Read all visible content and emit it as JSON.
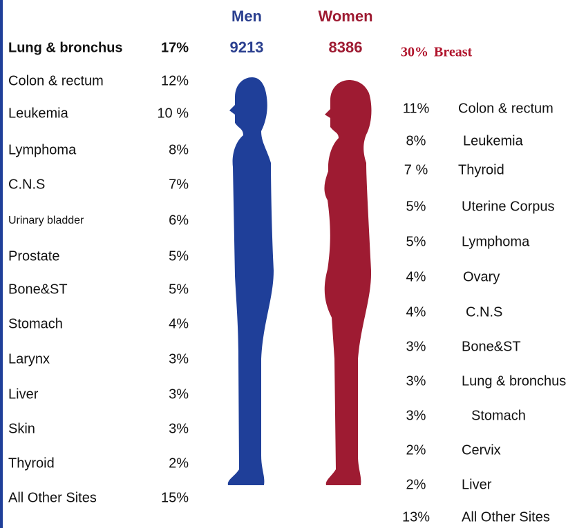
{
  "men": {
    "label": "Men",
    "total": 9213,
    "sites": [
      {
        "percent": "17%",
        "name": "Lung & bronchus"
      },
      {
        "percent": "12%",
        "name": "Colon & rectum"
      },
      {
        "percent": "10 %",
        "name": "Leukemia"
      },
      {
        "percent": "8%",
        "name": "Lymphoma"
      },
      {
        "percent": "7%",
        "name": "C.N.S"
      },
      {
        "percent": "6%",
        "name": "Urinary bladder"
      },
      {
        "percent": "5%",
        "name": "Prostate"
      },
      {
        "percent": "5%",
        "name": "Bone&ST"
      },
      {
        "percent": "4%",
        "name": "Stomach"
      },
      {
        "percent": "3%",
        "name": "Larynx"
      },
      {
        "percent": "3%",
        "name": "Liver"
      },
      {
        "percent": "3%",
        "name": "Skin"
      },
      {
        "percent": "2%",
        "name": "Thyroid"
      },
      {
        "percent": "15%",
        "name": "All Other Sites"
      }
    ]
  },
  "women": {
    "label": "Women",
    "total": 8386,
    "sites": [
      {
        "percent": "30%",
        "name": "Breast"
      },
      {
        "percent": "11%",
        "name": "Colon & rectum"
      },
      {
        "percent": "8%",
        "name": "Leukemia"
      },
      {
        "percent": "7 %",
        "name": "Thyroid"
      },
      {
        "percent": "5%",
        "name": "Uterine Corpus"
      },
      {
        "percent": "5%",
        "name": "Lymphoma"
      },
      {
        "percent": "4%",
        "name": "Ovary"
      },
      {
        "percent": "4%",
        "name": "C.N.S"
      },
      {
        "percent": "3%",
        "name": "Bone&ST"
      },
      {
        "percent": "3%",
        "name": "Lung & bronchus"
      },
      {
        "percent": "3%",
        "name": "Stomach"
      },
      {
        "percent": "2%",
        "name": "Cervix"
      },
      {
        "percent": "2%",
        "name": "Liver"
      },
      {
        "percent": "13%",
        "name": "All Other Sites"
      }
    ]
  }
}
